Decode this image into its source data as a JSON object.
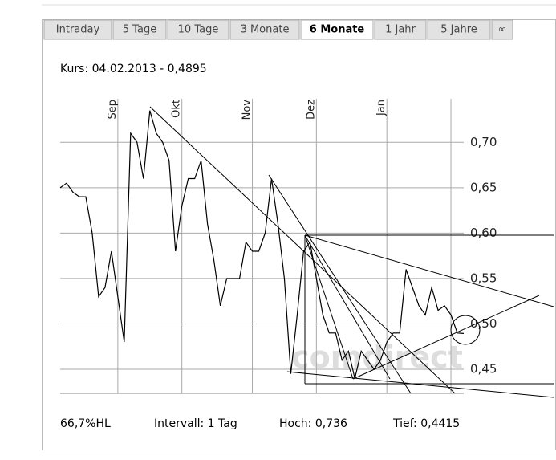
{
  "tabs": [
    "Intraday",
    "5 Tage",
    "10 Tage",
    "3 Monate",
    "6 Monate",
    "1 Jahr",
    "5 Jahre",
    "∞"
  ],
  "active_tab": 4,
  "chart_data": {
    "type": "line",
    "title": "Kurs: 04.02.2013 - 0,4895",
    "watermark": "comdirect",
    "color": "#000000",
    "values": [
      0.65,
      0.655,
      0.645,
      0.64,
      0.64,
      0.6,
      0.53,
      0.54,
      0.58,
      0.53,
      0.48,
      0.71,
      0.7,
      0.66,
      0.735,
      0.71,
      0.7,
      0.68,
      0.58,
      0.63,
      0.66,
      0.66,
      0.68,
      0.61,
      0.57,
      0.52,
      0.55,
      0.55,
      0.55,
      0.59,
      0.58,
      0.58,
      0.6,
      0.66,
      0.61,
      0.55,
      0.445,
      0.51,
      0.58,
      0.59,
      0.55,
      0.51,
      0.49,
      0.49,
      0.46,
      0.47,
      0.44,
      0.47,
      0.46,
      0.45,
      0.46,
      0.48,
      0.49,
      0.49,
      0.56,
      0.54,
      0.52,
      0.51,
      0.54,
      0.515,
      0.52,
      0.51,
      0.49,
      0.4895
    ],
    "xlim": [
      0,
      63
    ],
    "xticks": [
      {
        "value": 9,
        "label": "Sep"
      },
      {
        "value": 19,
        "label": "Okt"
      },
      {
        "value": 30,
        "label": "Nov"
      },
      {
        "value": 40,
        "label": "Dez"
      },
      {
        "value": 51,
        "label": "Jan"
      },
      {
        "value": 61,
        "label": null
      }
    ],
    "ylim": [
      0.4235,
      0.748
    ],
    "yticks": [
      {
        "value": 0.45,
        "label": "0,45"
      },
      {
        "value": 0.5,
        "label": "0,50"
      },
      {
        "value": 0.55,
        "label": "0,55"
      },
      {
        "value": 0.6,
        "label": "0,60"
      },
      {
        "value": 0.65,
        "label": "0,65"
      },
      {
        "value": 0.7,
        "label": "0,70"
      }
    ],
    "grid": true,
    "footer": [
      "66,7%HL",
      "Intervall: 1 Tag",
      "Hoch: 0,736",
      "Tief: 0,4415"
    ]
  }
}
